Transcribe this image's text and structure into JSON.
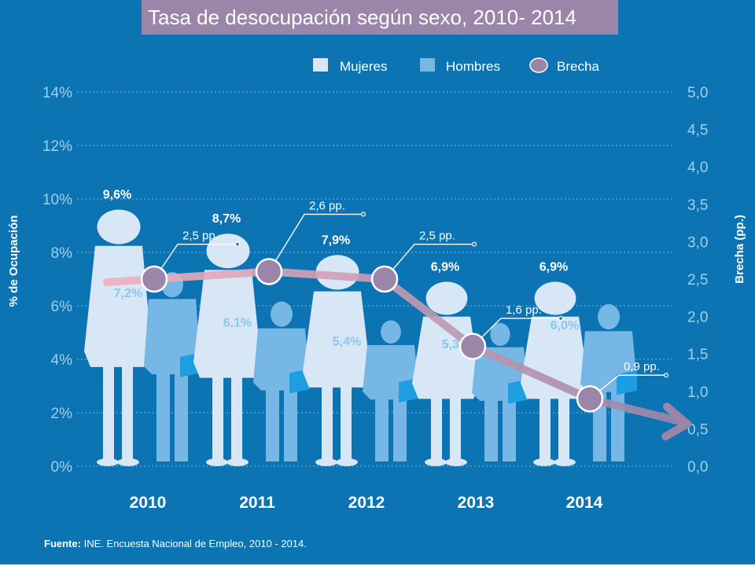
{
  "title": "Tasa de desocupación según sexo, 2010- 2014",
  "source_label": "Fuente:",
  "source_text": "INE. Encuesta Nacional de Empleo, 2010 - 2014.",
  "colors": {
    "background": "#0d74b3",
    "women": "#d7e7f6",
    "men": "#77b7e6",
    "gap": "#9b86a9",
    "gap_line_start": "#f0b0bf"
  },
  "chart_data": {
    "type": "bar",
    "categories": [
      "2010",
      "2011",
      "2012",
      "2013",
      "2014"
    ],
    "series": [
      {
        "name": "Mujeres",
        "values": [
          9.6,
          8.7,
          7.9,
          6.9,
          6.9
        ],
        "labels": [
          "9,6%",
          "8,7%",
          "7,9%",
          "6,9%",
          "6,9%"
        ]
      },
      {
        "name": "Hombres",
        "values": [
          7.2,
          6.1,
          5.4,
          5.3,
          6.0
        ],
        "labels": [
          "7,2%",
          "6,1%",
          "5,4%",
          "5,3%",
          "6,0%"
        ]
      },
      {
        "name": "Brecha",
        "type": "line",
        "axis": "right",
        "values": [
          2.5,
          2.6,
          2.5,
          1.6,
          0.9
        ],
        "labels": [
          "2,5 pp.",
          "2,6 pp.",
          "2,5 pp.",
          "1,6 pp.",
          "0,9 pp."
        ]
      }
    ],
    "ylabel": "% de Ocupación",
    "ylim": [
      0,
      14
    ],
    "yticks": [
      "0%",
      "2%",
      "4%",
      "6%",
      "8%",
      "10%",
      "12%",
      "14%"
    ],
    "y2label": "Brecha (pp.)",
    "y2lim": [
      0,
      5
    ],
    "y2ticks": [
      "0,0",
      "0,5",
      "1,0",
      "1,5",
      "2,0",
      "2,5",
      "3,0",
      "3,5",
      "4,0",
      "4,5",
      "5,0"
    ],
    "grid": true,
    "legend": "top-right"
  }
}
